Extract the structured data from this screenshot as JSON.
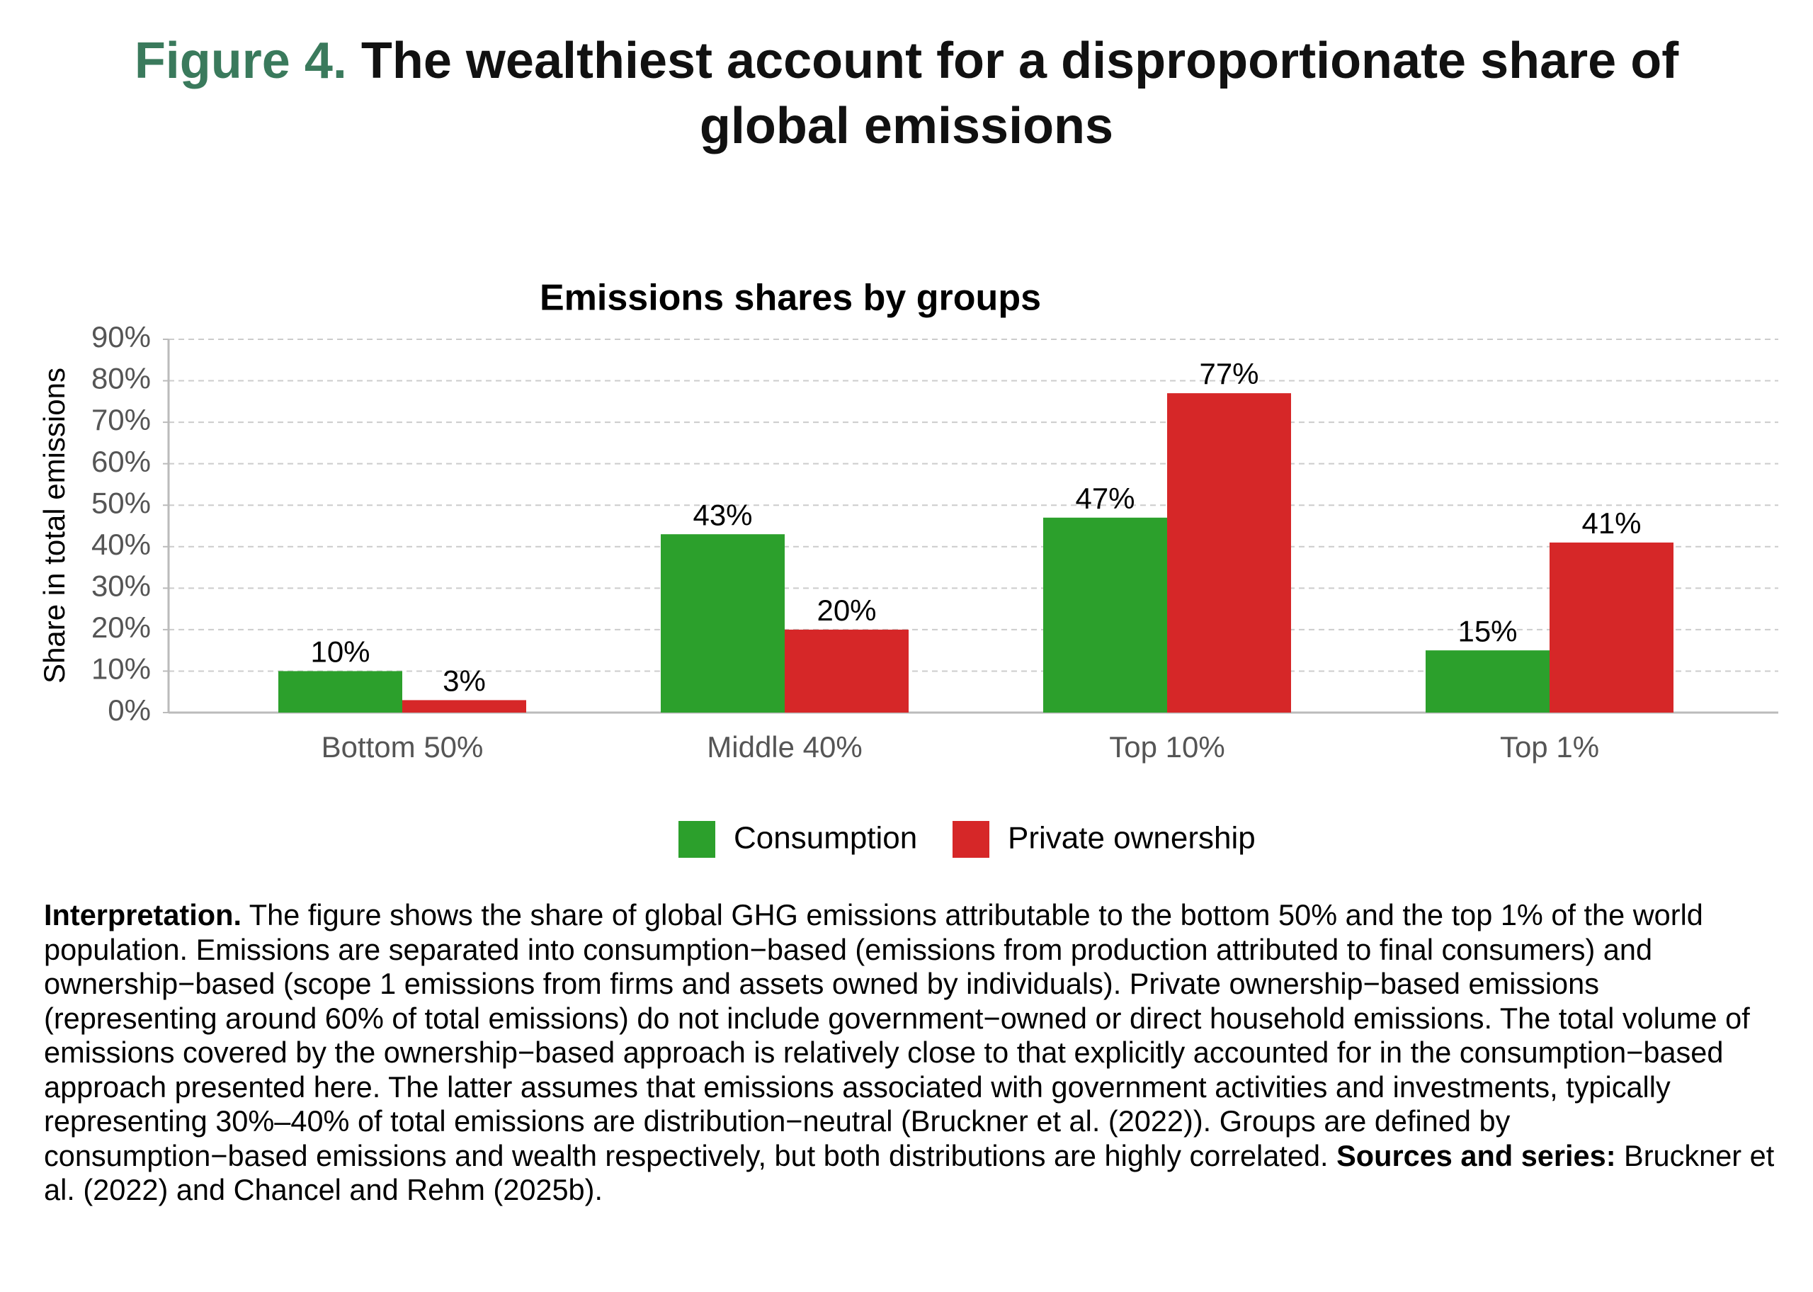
{
  "header": {
    "figure_label": "Figure 4.",
    "title": "The wealthiest account for a disproportionate share of global emissions"
  },
  "chart_data": {
    "type": "bar",
    "title": "Emissions shares by groups",
    "y_label": "Share in total emissions",
    "categories": [
      "Bottom 50%",
      "Middle 40%",
      "Top 10%",
      "Top 1%"
    ],
    "series": [
      {
        "name": "Consumption",
        "color": "#2ca02c",
        "values": [
          10,
          43,
          47,
          15
        ],
        "value_labels": [
          "10%",
          "43%",
          "47%",
          "15%"
        ]
      },
      {
        "name": "Private ownership",
        "color": "#d62728",
        "values": [
          3,
          20,
          77,
          41
        ],
        "value_labels": [
          "3%",
          "20%",
          "77%",
          "41%"
        ]
      }
    ],
    "ylim": [
      0,
      90
    ],
    "yticks": [
      {
        "value": 0,
        "label": "0%"
      },
      {
        "value": 10,
        "label": "10%"
      },
      {
        "value": 20,
        "label": "20%"
      },
      {
        "value": 30,
        "label": "30%"
      },
      {
        "value": 40,
        "label": "40%"
      },
      {
        "value": 50,
        "label": "50%"
      },
      {
        "value": 60,
        "label": "60%"
      },
      {
        "value": 70,
        "label": "70%"
      },
      {
        "value": 80,
        "label": "80%"
      },
      {
        "value": 90,
        "label": "90%"
      }
    ],
    "grid": true,
    "legend": "bottom"
  },
  "note": {
    "interpretation_label": "Interpretation.",
    "interpretation_text": " The figure shows the share of global GHG emissions attributable to the bottom 50% and the top 1% of the world population. Emissions are separated into consumption−based (emissions from production attributed to final consumers) and ownership−based (scope 1 emissions from firms and assets owned by individuals). Private ownership−based emissions (representing around 60% of total emissions) do not include government−owned or direct household emissions. The total volume of emissions covered by the ownership−based approach is relatively close to that explicitly accounted for in the consumption−based approach presented here. The latter assumes that emissions associated with government activities and investments, typically representing 30%–40% of total emissions are distribution−neutral (Bruckner et al. (2022)). Groups are defined by consumption−based emissions and wealth respectively, but both distributions are highly correlated. ",
    "sources_label": "Sources and series:",
    "sources_text": " Bruckner et al. (2022) and Chancel and Rehm (2025b)."
  }
}
